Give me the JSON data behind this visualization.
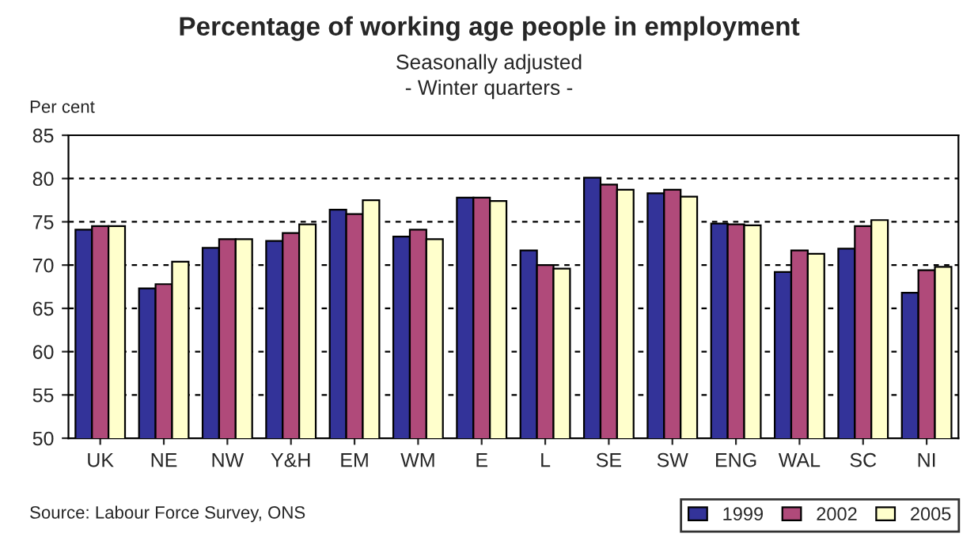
{
  "chart_data": {
    "type": "bar",
    "title": "Percentage of working age people in employment",
    "subtitle": "Seasonally adjusted\n- Winter quarters -",
    "ylabel": "Per cent",
    "categories": [
      "UK",
      "NE",
      "NW",
      "Y&H",
      "EM",
      "WM",
      "E",
      "L",
      "SE",
      "SW",
      "ENG",
      "WAL",
      "SC",
      "NI"
    ],
    "series": [
      {
        "name": "1999",
        "color": "#333399",
        "values": [
          74.1,
          67.3,
          72.0,
          72.8,
          76.4,
          73.3,
          77.8,
          71.7,
          80.1,
          78.3,
          74.8,
          69.2,
          71.9,
          66.8
        ]
      },
      {
        "name": "2002",
        "color": "#b04a7a",
        "values": [
          74.5,
          67.8,
          73.0,
          73.7,
          75.9,
          74.1,
          77.8,
          70.0,
          79.3,
          78.7,
          74.7,
          71.7,
          74.5,
          69.4
        ]
      },
      {
        "name": "2005",
        "color": "#ffffcc",
        "values": [
          74.5,
          70.4,
          73.0,
          74.7,
          77.5,
          73.0,
          77.4,
          69.6,
          78.7,
          77.9,
          74.6,
          71.3,
          75.2,
          69.8
        ]
      }
    ],
    "ylim": [
      50,
      85
    ],
    "yticks": [
      50,
      55,
      60,
      65,
      70,
      75,
      80,
      85
    ],
    "grid": "y",
    "legend": "bottom right",
    "annotations": [
      "Source: Labour Force Survey, ONS"
    ]
  }
}
